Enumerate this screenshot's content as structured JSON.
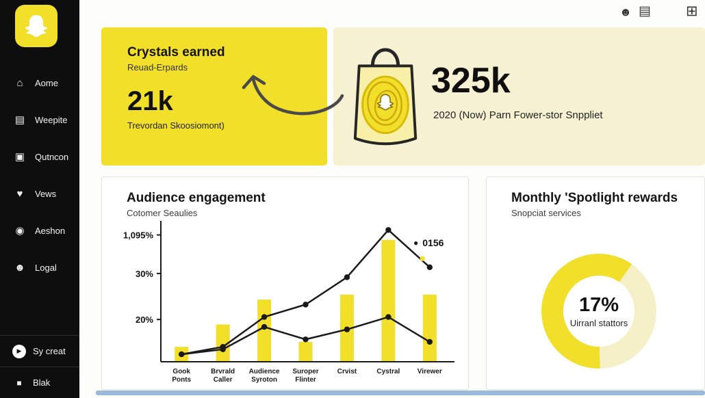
{
  "colors": {
    "brand_yellow": "#F2DF2A",
    "pale_yellow": "#F7F1D3",
    "sidebar_bg": "#0E0E0E",
    "footer_bar": "#9BB9DA"
  },
  "icons": {
    "home": "⌂",
    "pages": "▤",
    "gallery": "▣",
    "heart": "♥",
    "chat": "◉",
    "users": "☻",
    "play": "▶",
    "person": "■",
    "people": "☻",
    "list": "▤",
    "grid": "⊞",
    "dot": "●"
  },
  "sidebar": {
    "items": [
      {
        "label": "Aome"
      },
      {
        "label": "Weepite"
      },
      {
        "label": "Qutncon"
      },
      {
        "label": "Vews"
      },
      {
        "label": "Aeshon"
      },
      {
        "label": "Logal"
      }
    ],
    "footer_items": [
      {
        "label": "Sy creat"
      },
      {
        "label": "Blak"
      }
    ]
  },
  "cards": {
    "crystals": {
      "title": "Crystals earned",
      "subtitle": "Reuad-Erpards",
      "value": "21k",
      "caption": "Trevordan Skoosiomont)"
    },
    "rewards_total": {
      "value": "325k",
      "caption": "2020 (Now) Parn Fower-stor Snppliet"
    },
    "engagement": {
      "title": "Audience engagement",
      "subtitle": "Cotomer Seaulies"
    },
    "spotlight": {
      "title": "Monthly 'Spotlight rewards",
      "subtitle": "Snopciat services"
    }
  },
  "chart_data": [
    {
      "type": "bar",
      "title": "Audience engagement",
      "categories": [
        "Gook Ponts",
        "Brvrald Caller",
        "Audience Syroton",
        "Suroper Flinter",
        "Crvist",
        "Cystral",
        "Virewer"
      ],
      "series": [
        {
          "name": "bars",
          "type": "bar",
          "color": "#F2DF2A",
          "values": [
            6,
            15,
            25,
            8,
            27,
            49,
            27
          ]
        },
        {
          "name": "0156",
          "type": "line",
          "color": "#1A1A1A",
          "values": [
            3,
            6,
            18,
            23,
            34,
            53,
            38
          ]
        },
        {
          "name": "line-2",
          "type": "line",
          "color": "#1A1A1A",
          "values": [
            3,
            5,
            14,
            9,
            13,
            18,
            8
          ]
        }
      ],
      "ylim": [
        0,
        55
      ],
      "yticks": [
        {
          "label": "1,095%",
          "value": 51
        },
        {
          "label": "30%",
          "value": 35.5
        },
        {
          "label": "20%",
          "value": 17
        }
      ],
      "legend": [
        {
          "label": "0156",
          "color": "#1A1A1A"
        },
        {
          "label": "",
          "color": "#F2DF2A"
        }
      ],
      "grid": false,
      "legend_position": "right"
    },
    {
      "type": "pie",
      "title": "Monthly 'Spotlight rewards",
      "center_value": "17%",
      "center_label": "Uirranl stattors",
      "rotate": 35,
      "segments": [
        {
          "label": "light",
          "value": 40,
          "color": "#F6F0C9"
        },
        {
          "label": "main",
          "value": 60,
          "color": "#F2DF2A"
        }
      ]
    }
  ]
}
